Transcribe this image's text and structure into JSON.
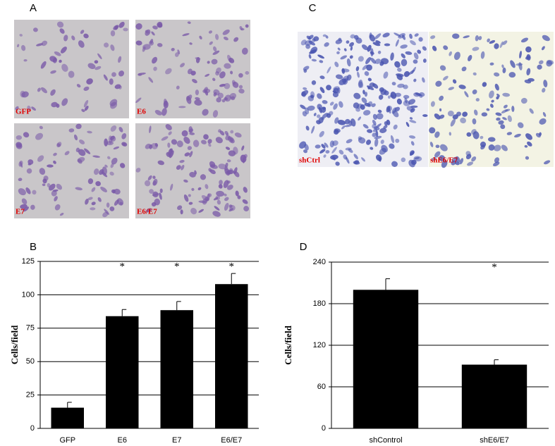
{
  "panels": {
    "a": "A",
    "b": "B",
    "c": "C",
    "d": "D"
  },
  "micrographs": {
    "a": [
      "GFP",
      "E6",
      "E7",
      "E6/E7"
    ],
    "c": [
      "shCtrl",
      "shE6/E7"
    ]
  },
  "chart_data": [
    {
      "type": "bar",
      "ylabel": "Cells/field",
      "categories": [
        "GFP",
        "E6",
        "E7",
        "E6/E7"
      ],
      "values": [
        15.5,
        84,
        88.5,
        108
      ],
      "errors": [
        4,
        5,
        6.5,
        8
      ],
      "significance": [
        null,
        "*",
        "*",
        "*"
      ],
      "color": "#000000",
      "ylim": [
        0,
        125
      ],
      "yticks": [
        0,
        25,
        50,
        75,
        100,
        125
      ],
      "grid": true
    },
    {
      "type": "bar",
      "ylabel": "Cells/field",
      "categories": [
        "shControl",
        "shE6/E7"
      ],
      "values": [
        200,
        92
      ],
      "errors": [
        16,
        7
      ],
      "significance": [
        null,
        "*"
      ],
      "color": "#000000",
      "ylim": [
        0,
        240
      ],
      "yticks": [
        0,
        60,
        120,
        180,
        240
      ],
      "grid": true
    }
  ]
}
